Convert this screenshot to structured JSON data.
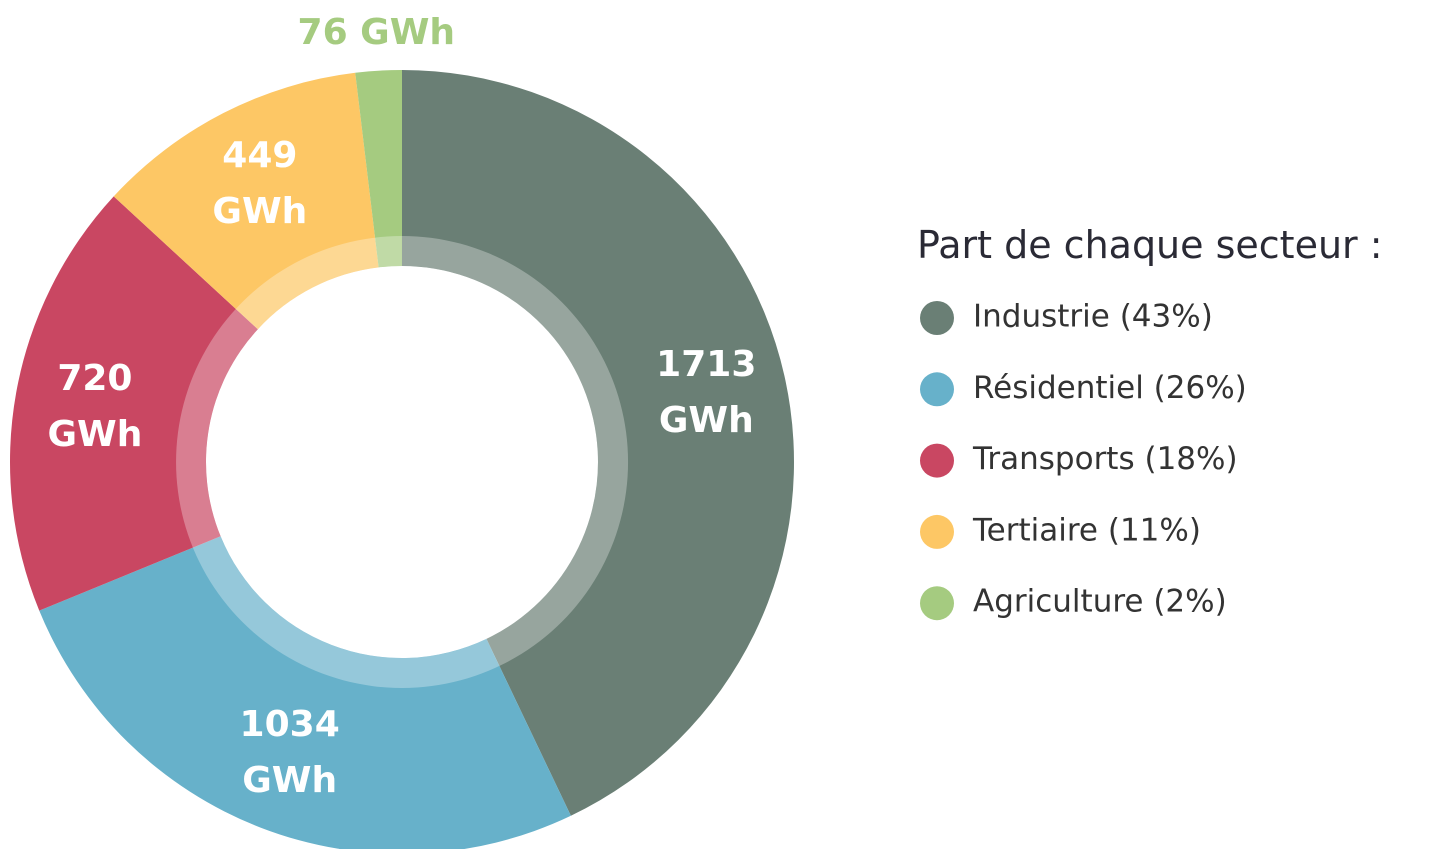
{
  "chart_data": {
    "type": "donut",
    "legend_title": "Part de chaque secteur :",
    "categories": [
      "Industrie (43%)",
      "Résidentiel (26%)",
      "Transports (18%)",
      "Tertiaire (11%)",
      "Agriculture (2%)"
    ],
    "values": [
      1713,
      1034,
      720,
      449,
      76
    ],
    "value_labels": [
      "1713 GWh",
      "1034 GWh",
      "720 GWh",
      "449 GWh",
      "76 GWh"
    ],
    "colors": [
      "#6a7f75",
      "#67b1ca",
      "#c94762",
      "#fdc765",
      "#a5cb80"
    ],
    "legend": "right"
  }
}
